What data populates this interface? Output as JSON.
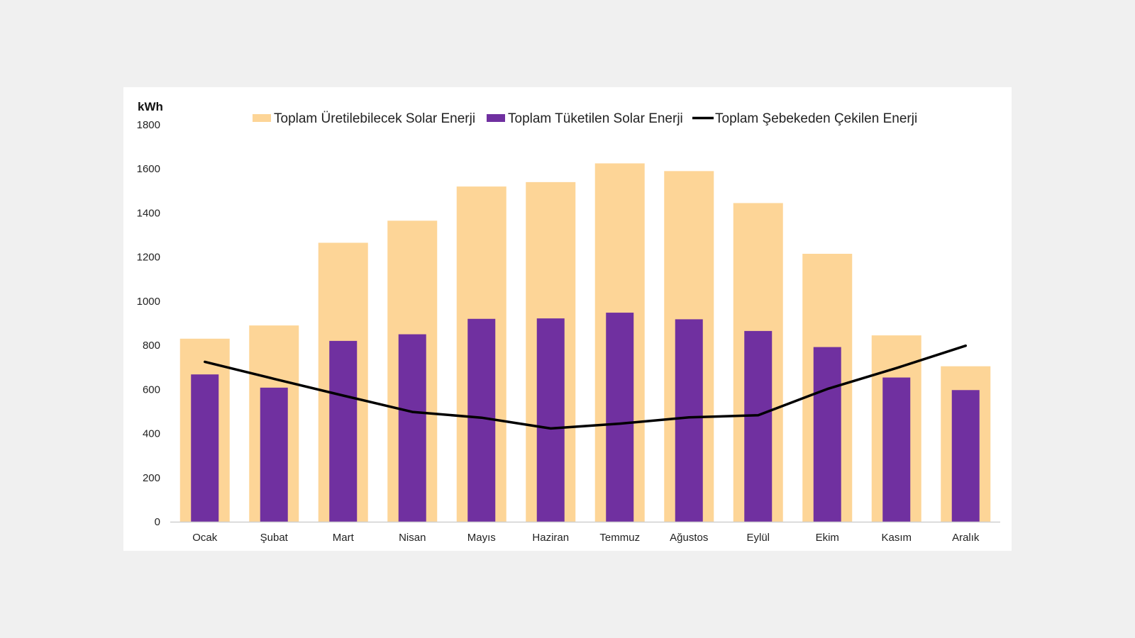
{
  "chart_data": {
    "type": "bar",
    "categories": [
      "Ocak",
      "Şubat",
      "Mart",
      "Nisan",
      "Mayıs",
      "Haziran",
      "Temmuz",
      "Ağustos",
      "Eylül",
      "Ekim",
      "Kasım",
      "Aralık"
    ],
    "series": [
      {
        "name": "Toplam Üretilebilecek Solar Enerji",
        "kind": "bar",
        "color": "#fdd597",
        "values": [
          830,
          890,
          1265,
          1365,
          1520,
          1540,
          1625,
          1590,
          1445,
          1215,
          845,
          705
        ]
      },
      {
        "name": "Toplam Tüketilen Solar Enerji",
        "kind": "bar",
        "color": "#7030a0",
        "values": [
          668,
          608,
          820,
          850,
          920,
          922,
          948,
          918,
          865,
          792,
          654,
          597
        ]
      },
      {
        "name": "Toplam Şebekeden Çekilen Enerji",
        "kind": "line",
        "color": "#000000",
        "values": [
          725,
          648,
          572,
          498,
          472,
          423,
          445,
          473,
          483,
          602,
          697,
          798
        ]
      }
    ],
    "ylabel": "kWh",
    "ylim": [
      0,
      1800
    ],
    "yticks": [
      "0",
      "200",
      "400",
      "600",
      "800",
      "1000",
      "1200",
      "1400",
      "1600",
      "1800"
    ],
    "grid": false,
    "legend_position": "top"
  }
}
